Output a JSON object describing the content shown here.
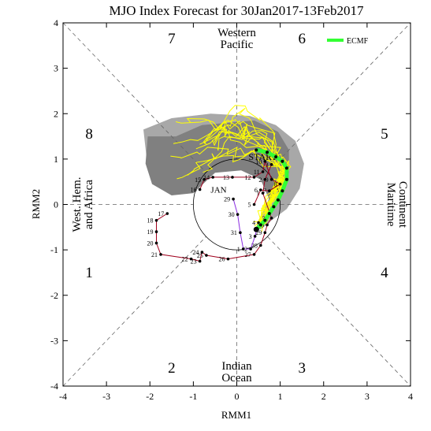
{
  "chart_data": {
    "type": "line",
    "title": "MJO Index Forecast for 30Jan2017-13Feb2017",
    "xlabel": "RMM1",
    "ylabel": "RMM2",
    "xlim": [
      -4,
      4
    ],
    "ylim": [
      -4,
      4
    ],
    "x_ticks": [
      "-4",
      "-3",
      "-2",
      "-1",
      "0",
      "1",
      "2",
      "3",
      "4"
    ],
    "y_ticks": [
      "-4",
      "-3",
      "-2",
      "-1",
      "0",
      "1",
      "2",
      "3",
      "4"
    ],
    "unit_circle_radius": 1,
    "phase_labels": [
      {
        "text": "1",
        "x": -3.4,
        "y": -1.5
      },
      {
        "text": "2",
        "x": -1.5,
        "y": -3.6
      },
      {
        "text": "3",
        "x": 1.5,
        "y": -3.6
      },
      {
        "text": "4",
        "x": 3.4,
        "y": -1.5
      },
      {
        "text": "5",
        "x": 3.4,
        "y": 1.55
      },
      {
        "text": "6",
        "x": 1.5,
        "y": 3.65
      },
      {
        "text": "7",
        "x": -1.5,
        "y": 3.65
      },
      {
        "text": "8",
        "x": -3.4,
        "y": 1.55
      }
    ],
    "region_labels": {
      "top": [
        "Western",
        "Pacific"
      ],
      "bottom": [
        "Indian",
        "Ocean"
      ],
      "left": [
        "West. Hem.",
        "and Africa"
      ],
      "right": [
        "Maritime",
        "Continent"
      ]
    },
    "legend": {
      "label": "ECMF",
      "color": "#33ff33",
      "position": "top-right"
    },
    "month_label": {
      "text": "JAN",
      "x": -0.6,
      "y": 0.33
    },
    "start_label": {
      "text": "START",
      "x": 0.6,
      "y": 1.05
    },
    "observed_dec": {
      "color": "#a0001c",
      "points": [
        {
          "day": "17",
          "x": -1.6,
          "y": -0.2
        },
        {
          "day": "18",
          "x": -1.85,
          "y": -0.35
        },
        {
          "day": "19",
          "x": -1.85,
          "y": -0.6
        },
        {
          "day": "20",
          "x": -1.85,
          "y": -0.85
        },
        {
          "day": "21",
          "x": -1.75,
          "y": -1.1
        },
        {
          "day": "22",
          "x": -1.05,
          "y": -1.2
        },
        {
          "day": "23",
          "x": -0.85,
          "y": -1.25
        },
        {
          "day": "24",
          "x": -0.8,
          "y": -1.05
        },
        {
          "day": "25",
          "x": -0.7,
          "y": -1.12
        },
        {
          "day": "26",
          "x": -0.2,
          "y": -1.2
        },
        {
          "day": "27",
          "x": 0.4,
          "y": -1.1
        },
        {
          "day": "28",
          "x": 0.55,
          "y": -0.9
        },
        {
          "day": "29",
          "x": 0.65,
          "y": -0.62
        },
        {
          "day": "30",
          "x": 0.7,
          "y": -0.45
        },
        {
          "day": "31",
          "x": 0.8,
          "y": -0.3
        },
        {
          "day": "1",
          "x": 0.6,
          "y": 0.25
        },
        {
          "day": "2",
          "x": 0.65,
          "y": 0.55
        },
        {
          "day": "3",
          "x": 0.8,
          "y": 0.88
        }
      ]
    },
    "observed_jan": {
      "color": "#a0001c",
      "points": [
        {
          "day": "16",
          "x": -0.85,
          "y": 0.33
        },
        {
          "day": "15",
          "x": -0.75,
          "y": 0.55
        },
        {
          "day": "14",
          "x": -0.55,
          "y": 0.6
        },
        {
          "day": "13",
          "x": -0.1,
          "y": 0.6
        },
        {
          "day": "12",
          "x": 0.4,
          "y": 0.6
        },
        {
          "day": "11",
          "x": 0.6,
          "y": 0.72
        },
        {
          "day": "10",
          "x": 0.65,
          "y": 0.95
        },
        {
          "day": "9",
          "x": 0.8,
          "y": 0.55
        },
        {
          "day": "8",
          "x": 1.0,
          "y": 0.45
        },
        {
          "day": "7",
          "x": 0.75,
          "y": 0.3
        },
        {
          "day": "6",
          "x": 0.55,
          "y": 0.32
        },
        {
          "day": "5",
          "x": 0.4,
          "y": 0.0
        }
      ]
    },
    "observed_recent": {
      "color": "#8a2be2",
      "points": [
        {
          "day": "29",
          "x": -0.08,
          "y": 0.12
        },
        {
          "day": "30",
          "x": 0.02,
          "y": -0.22
        },
        {
          "day": "31",
          "x": 0.08,
          "y": -0.62
        },
        {
          "day": "1",
          "x": 0.15,
          "y": -0.98
        },
        {
          "day": "2",
          "x": 0.32,
          "y": -0.98
        },
        {
          "day": "3",
          "x": 0.42,
          "y": -0.7
        },
        {
          "day": "4",
          "x": 0.5,
          "y": -0.4
        }
      ]
    },
    "forecast_mean": {
      "name": "ECMF",
      "color": "#33ff33",
      "points": [
        [
          0.45,
          -0.55
        ],
        [
          0.55,
          -0.45
        ],
        [
          0.65,
          -0.35
        ],
        [
          0.75,
          -0.2
        ],
        [
          0.85,
          -0.05
        ],
        [
          0.95,
          0.1
        ],
        [
          1.05,
          0.3
        ],
        [
          1.15,
          0.55
        ],
        [
          1.15,
          0.8
        ],
        [
          1.05,
          0.95
        ],
        [
          0.9,
          1.05
        ],
        [
          0.7,
          1.15
        ],
        [
          0.45,
          1.2
        ]
      ]
    },
    "ensemble_members": 14,
    "shading": {
      "outer_color": "#a8a8a8",
      "inner_color": "#808080"
    }
  }
}
